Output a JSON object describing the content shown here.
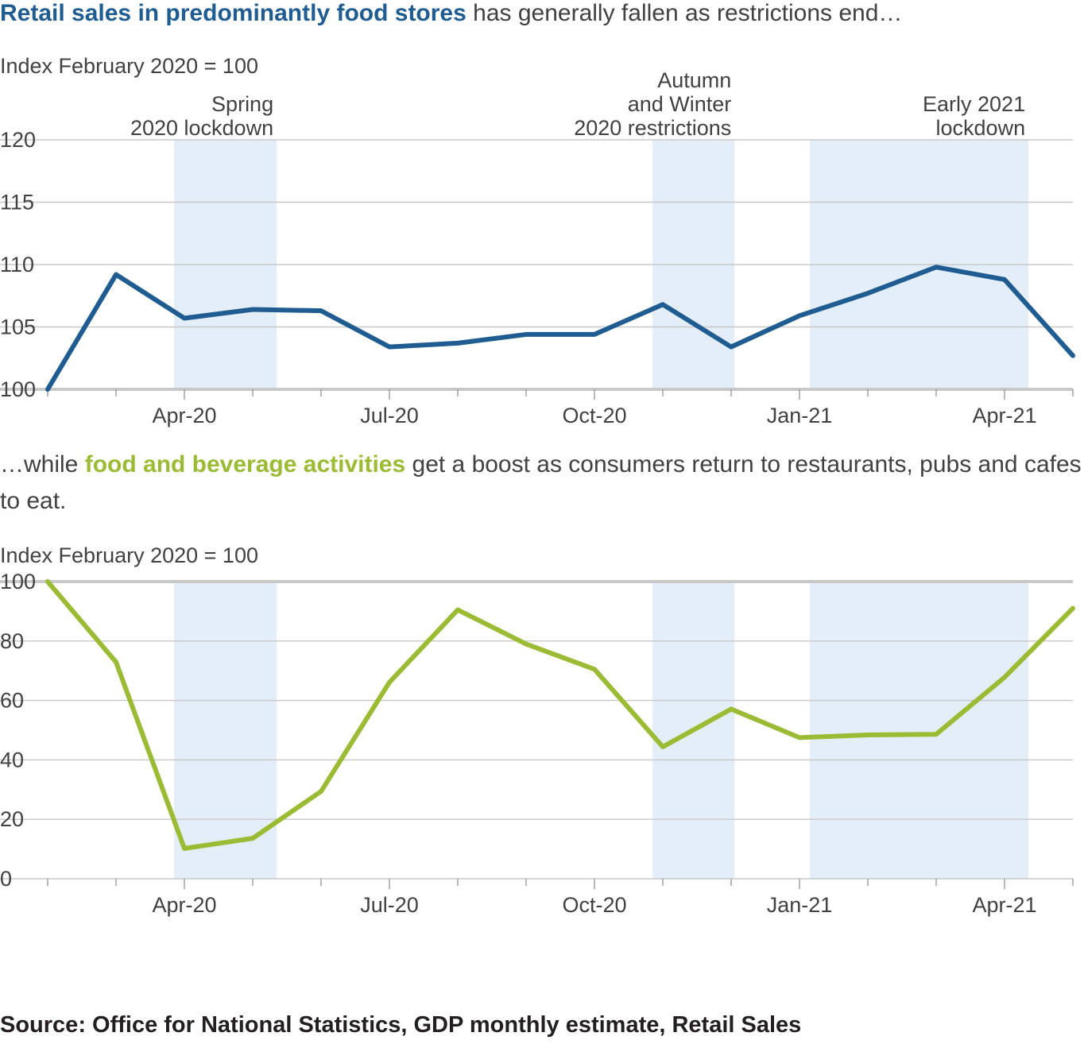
{
  "colors": {
    "retail": "#1f5c91",
    "food": "#9cbb35",
    "shade": "#e4eef8",
    "grid": "#c8c8c8",
    "baseline": "#c8c8c8",
    "text": "#414042"
  },
  "headline1": {
    "highlight": "Retail sales in predominantly food stores",
    "rest": " has generally fallen as restrictions end…"
  },
  "headline2": {
    "prefix": "…while ",
    "highlight": "food and beverage activities",
    "rest": " get a boost as consumers return to restaurants, pubs and cafes to eat."
  },
  "source": "Source: Office for National Statistics, GDP monthly estimate, Retail Sales",
  "chart_data": [
    {
      "type": "line",
      "ylabel": "Index February 2020 = 100",
      "ylim": [
        100,
        120
      ],
      "yticks": [
        100,
        105,
        110,
        115,
        120
      ],
      "x": [
        "Feb-20",
        "Mar-20",
        "Apr-20",
        "May-20",
        "Jun-20",
        "Jul-20",
        "Aug-20",
        "Sep-20",
        "Oct-20",
        "Nov-20",
        "Dec-20",
        "Jan-21",
        "Feb-21",
        "Mar-21",
        "Apr-21",
        "May-21"
      ],
      "xtick_labels": [
        "Apr-20",
        "Jul-20",
        "Oct-20",
        "Jan-21",
        "Apr-21"
      ],
      "series": [
        {
          "values": [
            100,
            109.2,
            105.7,
            106.4,
            106.3,
            103.4,
            103.7,
            104.4,
            104.4,
            106.8,
            103.4,
            105.9,
            107.7,
            109.8,
            108.8,
            102.7
          ]
        }
      ],
      "shaded_periods": [
        {
          "label": [
            "Spring",
            "2020 lockdown"
          ],
          "start": "Mar-20",
          "end": "May-20"
        },
        {
          "label": [
            "Autumn",
            "and Winter",
            "2020 restrictions"
          ],
          "start": "Oct-20",
          "end": "Dec-20"
        },
        {
          "label": [
            "Early 2021",
            "lockdown"
          ],
          "start": "Jan-21",
          "end": "Apr-21"
        }
      ],
      "grid": true
    },
    {
      "type": "line",
      "ylabel": "Index February 2020 = 100",
      "ylim": [
        0,
        100
      ],
      "yticks": [
        0,
        20,
        40,
        60,
        80,
        100
      ],
      "x": [
        "Feb-20",
        "Mar-20",
        "Apr-20",
        "May-20",
        "Jun-20",
        "Jul-20",
        "Aug-20",
        "Sep-20",
        "Oct-20",
        "Nov-20",
        "Dec-20",
        "Jan-21",
        "Feb-21",
        "Mar-21",
        "Apr-21",
        "May-21"
      ],
      "xtick_labels": [
        "Apr-20",
        "Jul-20",
        "Oct-20",
        "Jan-21",
        "Apr-21"
      ],
      "series": [
        {
          "values": [
            100,
            72.9,
            10.2,
            13.6,
            29.4,
            66.1,
            90.5,
            79.0,
            70.5,
            44.4,
            57.1,
            47.5,
            48.4,
            48.6,
            67.8,
            91.0
          ]
        }
      ],
      "shaded_periods": [
        {
          "start": "Mar-20",
          "end": "May-20"
        },
        {
          "start": "Oct-20",
          "end": "Dec-20"
        },
        {
          "start": "Jan-21",
          "end": "Apr-21"
        }
      ],
      "grid": true
    }
  ]
}
